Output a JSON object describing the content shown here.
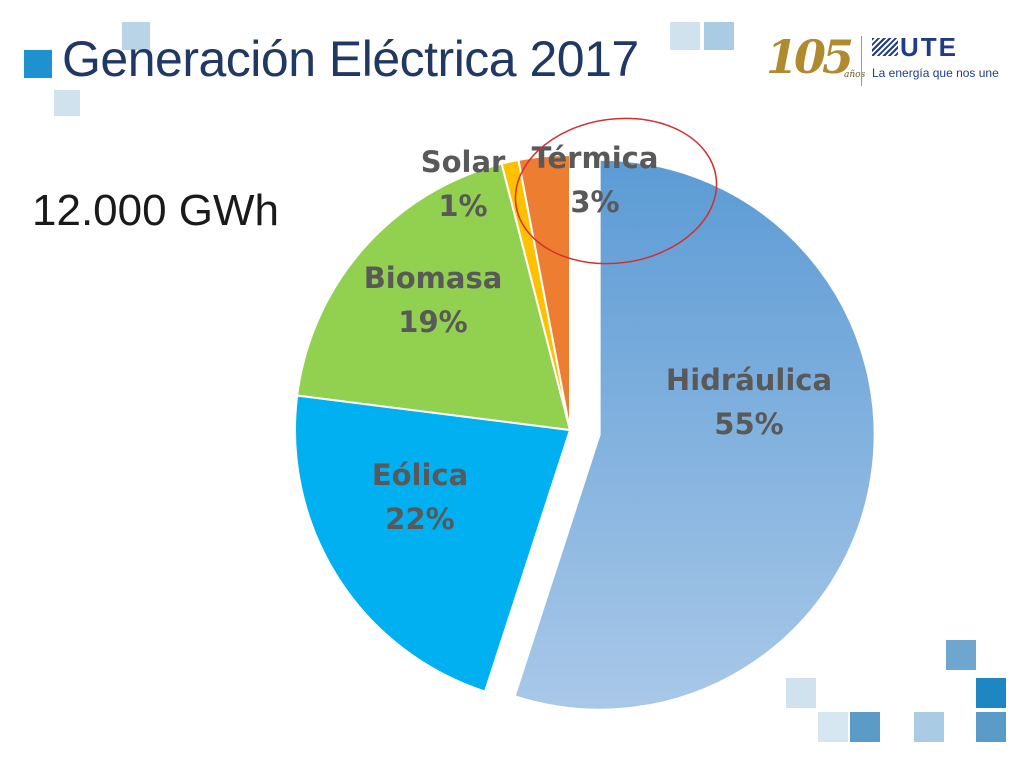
{
  "slide": {
    "title": "Generación Eléctrica 2017",
    "total": "12.000 GWh"
  },
  "logo": {
    "anniversary_number": "105",
    "anniversary_word": "años",
    "brand": "UTE",
    "tagline": "La energía que nos une"
  },
  "colors": {
    "title": "#1f3864",
    "highlight_circle": "#d62e2e",
    "label": "#595959"
  },
  "chart_data": {
    "type": "pie",
    "title": "Generación Eléctrica 2017",
    "start_angle_deg": 0,
    "direction": "clockwise",
    "exploded": [
      "Hidráulica"
    ],
    "highlighted": [
      "Térmica"
    ],
    "slices": [
      {
        "label": "Hidráulica",
        "value": 55,
        "display": "55%",
        "color": "#7fa8d8"
      },
      {
        "label": "Eólica",
        "value": 22,
        "display": "22%",
        "color": "#00b0f0"
      },
      {
        "label": "Biomasa",
        "value": 19,
        "display": "19%",
        "color": "#92d050"
      },
      {
        "label": "Solar",
        "value": 1,
        "display": "1%",
        "color": "#ffc000"
      },
      {
        "label": "Térmica",
        "value": 3,
        "display": "3%",
        "color": "#ed7d31"
      }
    ]
  }
}
